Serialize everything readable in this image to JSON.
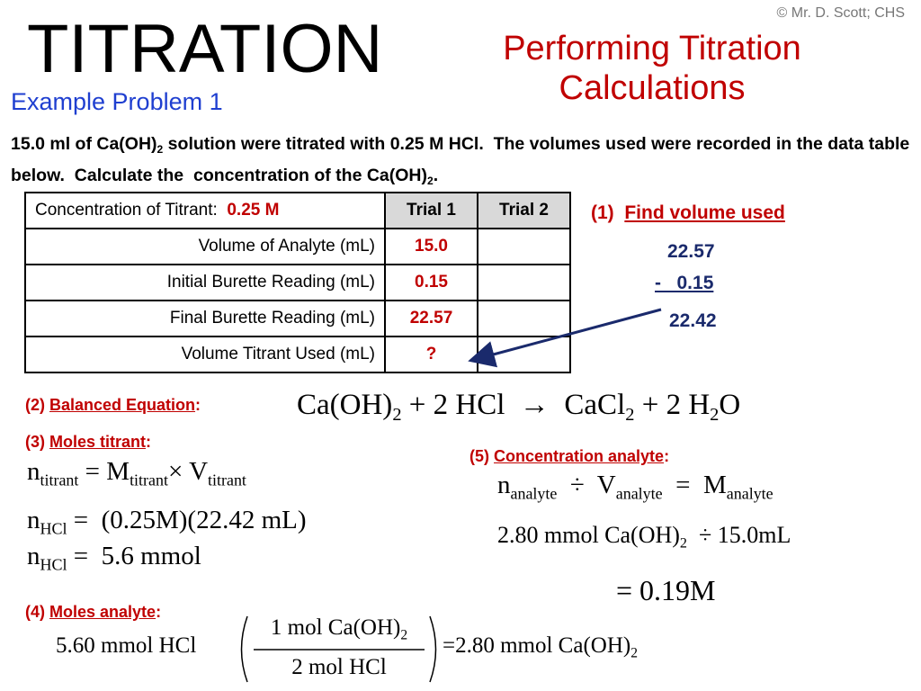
{
  "copyright": "© Mr. D. Scott; CHS",
  "title": "TITRATION",
  "subtitle": "Performing Titration Calculations",
  "example": "Example Problem 1",
  "problem": [
    "15.0 ml of Ca(OH)",
    {
      "sub": "2"
    },
    " solution were titrated with 0.25 M HCl.  The volumes used were recorded in the data table below.  Calculate the  concentration of the Ca(OH)",
    {
      "sub": "2"
    },
    "."
  ],
  "table": {
    "header": [
      "Concentration of Titrant:",
      "0.25 M",
      "Trial 1",
      "Trial 2"
    ],
    "rows": [
      [
        "Volume of Analyte  (mL)",
        "15.0"
      ],
      [
        "Initial Burette Reading  (mL)",
        "0.15"
      ],
      [
        "Final Burette Reading  (mL)",
        "22.57"
      ],
      [
        "Volume Titrant Used  (mL)",
        "?"
      ]
    ]
  },
  "step1": {
    "number": "(1)",
    "label": "Find volume used",
    "lines": [
      "22.57",
      "-   0.15",
      "22.42"
    ]
  },
  "step2": {
    "number": "(2)",
    "label": "Balanced Equation",
    "colon": ":",
    "equation": [
      "Ca(OH)",
      {
        "sub": "2"
      },
      " + 2 HCl  →  CaCl",
      {
        "sub": "2"
      },
      " + 2 H",
      {
        "sub": "2"
      },
      "O"
    ]
  },
  "step3": {
    "number": "(3)",
    "label": "Moles titrant",
    "colon": ":",
    "lines": [
      [
        "n",
        {
          "sub": "titrant"
        },
        " = M",
        {
          "sub": "titrant"
        },
        "× V",
        {
          "sub": "titrant"
        }
      ],
      [
        "n",
        {
          "sub": "HCl"
        },
        " =  (0.25M)(22.42 mL)"
      ],
      [
        "n",
        {
          "sub": "HCl"
        },
        " =  5.6 mmol"
      ]
    ]
  },
  "step4": {
    "number": "(4)",
    "label": "Moles analyte",
    "colon": ":",
    "start": "5.60 mmol HCl",
    "numerator": [
      "1 mol Ca(OH)",
      {
        "sub": "2"
      }
    ],
    "denominator": "2 mol HCl",
    "result": [
      "=2.80 mmol Ca(OH)",
      {
        "sub": "2"
      }
    ]
  },
  "step5": {
    "number": "(5)",
    "label": "Concentration analyte",
    "colon": ":",
    "lines": [
      [
        "n",
        {
          "sub": "analyte"
        },
        "  ÷  V",
        {
          "sub": "analyte"
        },
        "  =  M",
        {
          "sub": "analyte"
        }
      ],
      [
        "2.80 mmol Ca(OH)",
        {
          "sub": "2"
        },
        "  ÷ 15.0mL"
      ],
      [
        "= 0.19M"
      ]
    ]
  }
}
